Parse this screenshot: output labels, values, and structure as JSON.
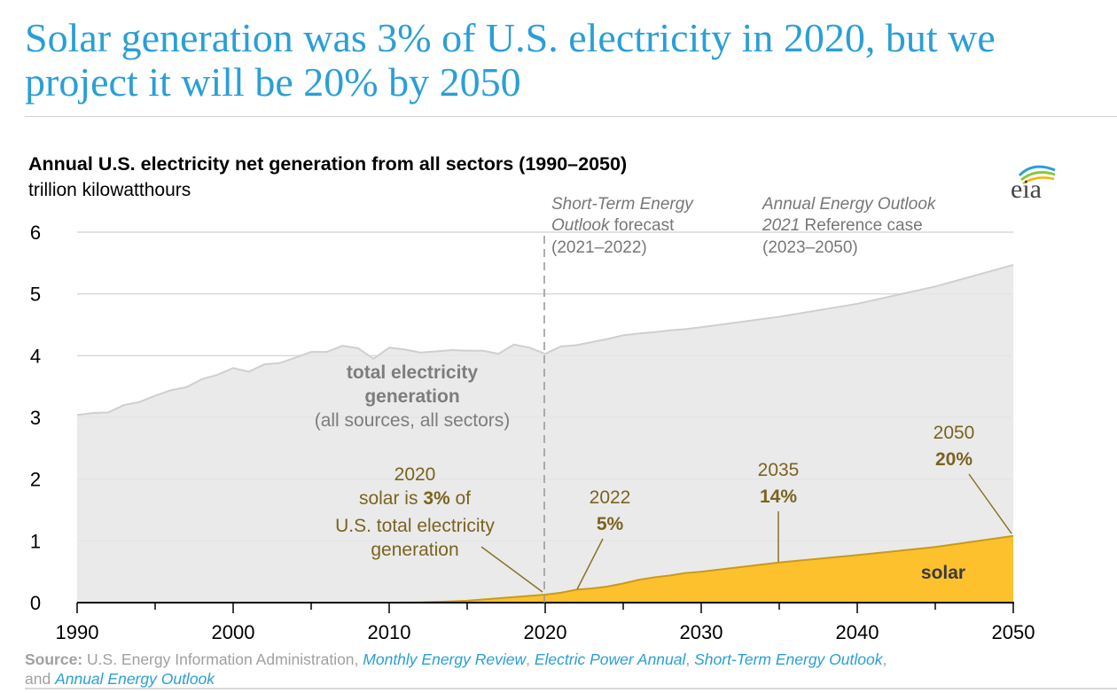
{
  "headline": "Solar generation was 3% of U.S. electricity in 2020, but we project it will be 20% by 2050",
  "logo": "eia",
  "chart_data": {
    "type": "area",
    "title": "Annual U.S. electricity net generation from all sectors (1990–2050)",
    "ylabel": "trillion kilowatthours",
    "xlim": [
      1990,
      2050
    ],
    "ylim": [
      0,
      6
    ],
    "xticks": [
      1990,
      2000,
      2010,
      2020,
      2030,
      2040,
      2050
    ],
    "yticks": [
      0,
      1,
      2,
      3,
      4,
      5,
      6
    ],
    "grid": "horizontal",
    "forecast_divider_year": 2020,
    "colors": {
      "total": "#e6e6e6",
      "total_line": "#cfcfcf",
      "solar": "#fdc12e",
      "solar_line": "#c99a1c",
      "annotation": "#7a6320",
      "headline": "#2a9fd6"
    },
    "series": [
      {
        "name": "total electricity generation",
        "x": [
          1990,
          1991,
          1992,
          1993,
          1994,
          1995,
          1996,
          1997,
          1998,
          1999,
          2000,
          2001,
          2002,
          2003,
          2004,
          2005,
          2006,
          2007,
          2008,
          2009,
          2010,
          2011,
          2012,
          2013,
          2014,
          2015,
          2016,
          2017,
          2018,
          2019,
          2020,
          2021,
          2022,
          2023,
          2024,
          2025,
          2026,
          2027,
          2028,
          2029,
          2030,
          2035,
          2040,
          2045,
          2050
        ],
        "y": [
          3.04,
          3.07,
          3.08,
          3.2,
          3.25,
          3.35,
          3.44,
          3.49,
          3.62,
          3.69,
          3.8,
          3.74,
          3.86,
          3.88,
          3.97,
          4.06,
          4.06,
          4.16,
          4.12,
          3.95,
          4.13,
          4.1,
          4.05,
          4.07,
          4.09,
          4.08,
          4.08,
          4.03,
          4.18,
          4.13,
          4.03,
          4.15,
          4.17,
          4.22,
          4.27,
          4.33,
          4.36,
          4.38,
          4.41,
          4.43,
          4.46,
          4.63,
          4.84,
          5.12,
          5.47
        ]
      },
      {
        "name": "solar",
        "x": [
          1990,
          2010,
          2012,
          2013,
          2014,
          2015,
          2016,
          2017,
          2018,
          2019,
          2020,
          2021,
          2022,
          2023,
          2024,
          2025,
          2026,
          2027,
          2028,
          2029,
          2030,
          2035,
          2040,
          2045,
          2050
        ],
        "y": [
          0,
          0,
          0.004,
          0.01,
          0.02,
          0.03,
          0.05,
          0.07,
          0.09,
          0.11,
          0.13,
          0.16,
          0.21,
          0.23,
          0.26,
          0.31,
          0.37,
          0.41,
          0.44,
          0.48,
          0.5,
          0.65,
          0.77,
          0.9,
          1.08
        ]
      }
    ],
    "annotations": {
      "steo_line1": "Short-Term Energy",
      "steo_line2_italic": "Outlook",
      "steo_line2_rest": " forecast",
      "steo_line3": "(2021–2022)",
      "aeo_line1": "Annual Energy Outlook",
      "aeo_line2_italic": "2021",
      "aeo_line2_rest": " Reference case",
      "aeo_line3": "(2023–2050)",
      "total_line1": "total electricity",
      "total_line2": "generation",
      "total_line3": "(all sources, all sectors)",
      "a2020_year": "2020",
      "a2020_pre": "solar is ",
      "a2020_pct": "3%",
      "a2020_post": " of",
      "a2020_l3": "U.S. total electricity",
      "a2020_l4": "generation",
      "a2022_year": "2022",
      "a2022_pct": "5%",
      "a2035_year": "2035",
      "a2035_pct": "14%",
      "a2050_year": "2050",
      "a2050_pct": "20%",
      "solar_label": "solar"
    }
  },
  "source": {
    "label": "Source:",
    "text1": " U.S. Energy Information Administration, ",
    "link1": "Monthly Energy Review",
    "sep1": ", ",
    "link2": "Electric Power Annual",
    "sep2": ", ",
    "link3": "Short-Term Energy Outlook",
    "sep3": ",",
    "text2": "and ",
    "link4": "Annual Energy Outlook"
  }
}
